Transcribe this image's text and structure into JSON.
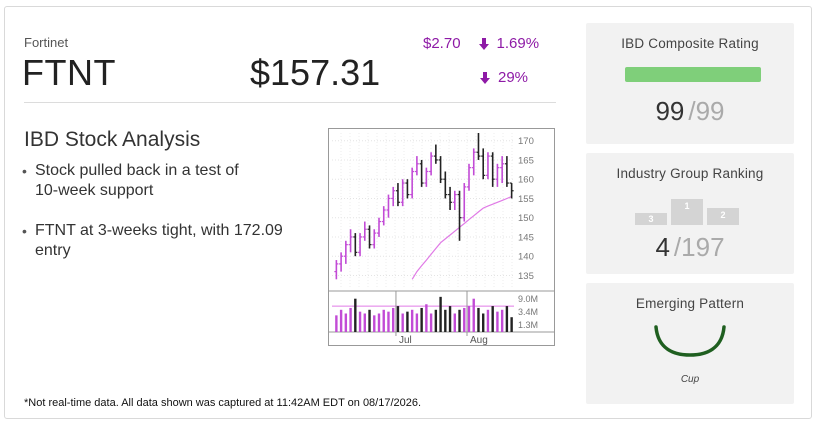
{
  "header": {
    "company": "Fortinet",
    "ticker": "FTNT",
    "price": "$157.31",
    "change_amount": "$2.70",
    "change_percent": "1.69%",
    "volume_change_percent": "29%",
    "change_color": "#8e1aa6"
  },
  "analysis": {
    "title": "IBD Stock Analysis",
    "bullets": [
      {
        "line1": "Stock pulled back in a test of",
        "line2": "10-week support"
      },
      {
        "line1": "FTNT at 3-weeks tight, with 172.09",
        "line2": "entry"
      }
    ]
  },
  "footnote": "*Not real-time data. All data shown was captured at 11:42AM EDT on 08/17/2026.",
  "composite": {
    "title": "IBD Composite Rating",
    "value": "99",
    "denominator": "/99",
    "bar_fraction": 0.99,
    "bar_color": "#7fcf7a"
  },
  "industry": {
    "title": "Industry Group Ranking",
    "value": "4",
    "denominator": "/197",
    "podium": [
      "3",
      "1",
      "2"
    ]
  },
  "pattern": {
    "title": "Emerging Pattern",
    "name": "Cup",
    "icon": "cup-shape-icon",
    "color": "#1f5f20"
  },
  "chart_data": {
    "type": "candlestick",
    "price_ticks": [
      "170",
      "165",
      "160",
      "155",
      "150",
      "145",
      "140",
      "135"
    ],
    "price_tick_values": [
      170,
      165,
      160,
      155,
      150,
      145,
      140,
      135
    ],
    "ylim": [
      132,
      172
    ],
    "volume_ticks": [
      "9.0M",
      "3.4M",
      "1.3M"
    ],
    "x_labels": [
      "Jul",
      "Aug"
    ],
    "up_color": "#c24bd6",
    "down_color": "#222222",
    "ma_color": "#e07ae6",
    "bars": [
      [
        136,
        139,
        134,
        138
      ],
      [
        138,
        141,
        136,
        140
      ],
      [
        140,
        144,
        138,
        143
      ],
      [
        143,
        147,
        141,
        145
      ],
      [
        145,
        146,
        140,
        141
      ],
      [
        141,
        146,
        140,
        145
      ],
      [
        145,
        149,
        144,
        147
      ],
      [
        147,
        148,
        142,
        143
      ],
      [
        143,
        147,
        142,
        146
      ],
      [
        146,
        150,
        145,
        149
      ],
      [
        149,
        153,
        148,
        152
      ],
      [
        152,
        156,
        150,
        155
      ],
      [
        155,
        158,
        153,
        157
      ],
      [
        157,
        159,
        153,
        154
      ],
      [
        154,
        160,
        153,
        159
      ],
      [
        159,
        160,
        155,
        156
      ],
      [
        156,
        163,
        155,
        162
      ],
      [
        162,
        166,
        161,
        164
      ],
      [
        164,
        165,
        158,
        159
      ],
      [
        159,
        163,
        158,
        162
      ],
      [
        162,
        167,
        161,
        166
      ],
      [
        166,
        169,
        164,
        165
      ],
      [
        165,
        166,
        159,
        160
      ],
      [
        160,
        162,
        155,
        156
      ],
      [
        156,
        158,
        152,
        154
      ],
      [
        154,
        157,
        152,
        156
      ],
      [
        156,
        157,
        144,
        150
      ],
      [
        150,
        159,
        149,
        158
      ],
      [
        158,
        164,
        157,
        163
      ],
      [
        163,
        168,
        161,
        167
      ],
      [
        167,
        172,
        165,
        166
      ],
      [
        166,
        168,
        160,
        161
      ],
      [
        161,
        167,
        160,
        166
      ],
      [
        166,
        167,
        158,
        160
      ],
      [
        160,
        164,
        158,
        163
      ],
      [
        163,
        166,
        159,
        164
      ],
      [
        164,
        166,
        158,
        159
      ],
      [
        159,
        159,
        155,
        157
      ]
    ],
    "ma": [
      null,
      null,
      null,
      null,
      null,
      null,
      null,
      null,
      null,
      null,
      null,
      null,
      null,
      null,
      null,
      null,
      134,
      136,
      137.5,
      139,
      140.5,
      142,
      143.5,
      144.5,
      145.5,
      146.5,
      147.5,
      148.5,
      149.5,
      150.5,
      151.5,
      152.5,
      153,
      153.5,
      154,
      154.5,
      155,
      155.5
    ],
    "volume": [
      4.5,
      6,
      5,
      6.5,
      9,
      5.5,
      5,
      6,
      4.5,
      5,
      6,
      5.5,
      6.5,
      7,
      5,
      5.5,
      6,
      5,
      6.5,
      7.5,
      5,
      6,
      9.5,
      6,
      7,
      5,
      6,
      6.5,
      7,
      9,
      6.5,
      5,
      6,
      7,
      5.5,
      6,
      7,
      4
    ]
  }
}
